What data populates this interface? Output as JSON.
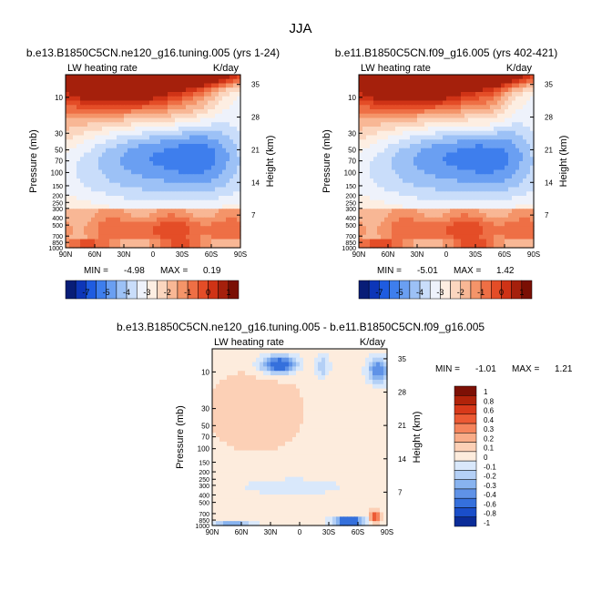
{
  "figure_title": "JJA",
  "chart_data": [
    {
      "type": "heatmap",
      "title": "b.e13.B1850C5CN.ne120_g16.tuning.005 (yrs 1-24)",
      "variable": "LW heating rate",
      "units": "K/day",
      "ylabel": "Pressure (mb)",
      "ylabel_right": "Height (km)",
      "x_ticks": [
        "90N",
        "60N",
        "30N",
        "0",
        "30S",
        "60S",
        "90S"
      ],
      "y_ticks": [
        "10",
        "30",
        "50",
        "70",
        "100",
        "150",
        "200",
        "250",
        "300",
        "400",
        "500",
        "700",
        "850",
        "1000"
      ],
      "y_right_ticks": [
        "35",
        "28",
        "21",
        "14",
        "7"
      ],
      "stats_min_label": "MIN =",
      "min": "-4.98",
      "stats_max_label": "MAX =",
      "max": "0.19",
      "colorbar_labels": [
        "-7",
        "-5",
        "-4",
        "-3",
        "-2",
        "-1",
        "0",
        "1"
      ]
    },
    {
      "type": "heatmap",
      "title": "b.e11.B1850C5CN.f09_g16.005 (yrs 402-421)",
      "variable": "LW heating rate",
      "units": "K/day",
      "ylabel": "Pressure (mb)",
      "ylabel_right": "Height (km)",
      "x_ticks": [
        "90N",
        "60N",
        "30N",
        "0",
        "30S",
        "60S",
        "90S"
      ],
      "y_ticks": [
        "10",
        "30",
        "50",
        "70",
        "100",
        "150",
        "200",
        "250",
        "300",
        "400",
        "500",
        "700",
        "850",
        "1000"
      ],
      "y_right_ticks": [
        "35",
        "28",
        "21",
        "14",
        "7"
      ],
      "stats_min_label": "MIN =",
      "min": "-5.01",
      "stats_max_label": "MAX =",
      "max": "1.42",
      "colorbar_labels": [
        "-7",
        "-5",
        "-4",
        "-3",
        "-2",
        "-1",
        "0",
        "1"
      ]
    },
    {
      "type": "heatmap",
      "title": "b.e13.B1850C5CN.ne120_g16.tuning.005 - b.e11.B1850C5CN.f09_g16.005",
      "variable": "LW heating rate",
      "units": "K/day",
      "ylabel": "Pressure (mb)",
      "ylabel_right": "Height (km)",
      "x_ticks": [
        "90N",
        "60N",
        "30N",
        "0",
        "30S",
        "60S",
        "90S"
      ],
      "y_ticks": [
        "10",
        "30",
        "50",
        "70",
        "100",
        "150",
        "200",
        "250",
        "300",
        "400",
        "500",
        "700",
        "850",
        "1000"
      ],
      "y_right_ticks": [
        "35",
        "28",
        "21",
        "14",
        "7"
      ],
      "stats_min_label": "MIN =",
      "min": "-1.01",
      "stats_max_label": "MAX =",
      "max": "1.21",
      "colorbar_labels": [
        "1",
        "0.8",
        "0.6",
        "0.4",
        "0.3",
        "0.2",
        "0.1",
        "0",
        "-0.1",
        "-0.2",
        "-0.3",
        "-0.4",
        "-0.6",
        "-0.8",
        "-1"
      ]
    }
  ],
  "colors": {
    "main_scale": [
      "#081d77",
      "#0d36b8",
      "#1f5ce0",
      "#3e7eed",
      "#6a9ff2",
      "#9cc1f6",
      "#c9ddfa",
      "#eef2fb",
      "#fdeee2",
      "#fbd6bf",
      "#f8b795",
      "#f49469",
      "#ee6f45",
      "#e44d27",
      "#cf3316",
      "#a5200c",
      "#7a0f04"
    ],
    "diff_scale": [
      "#7d1005",
      "#b1230a",
      "#d8391a",
      "#ec5a34",
      "#f5845c",
      "#f9ac88",
      "#fcd0b6",
      "#fdecdd",
      "#d9e8fb",
      "#b4d0f6",
      "#88b3ef",
      "#5f92e7",
      "#3570dc",
      "#1a4ec9",
      "#0b2c98"
    ]
  }
}
